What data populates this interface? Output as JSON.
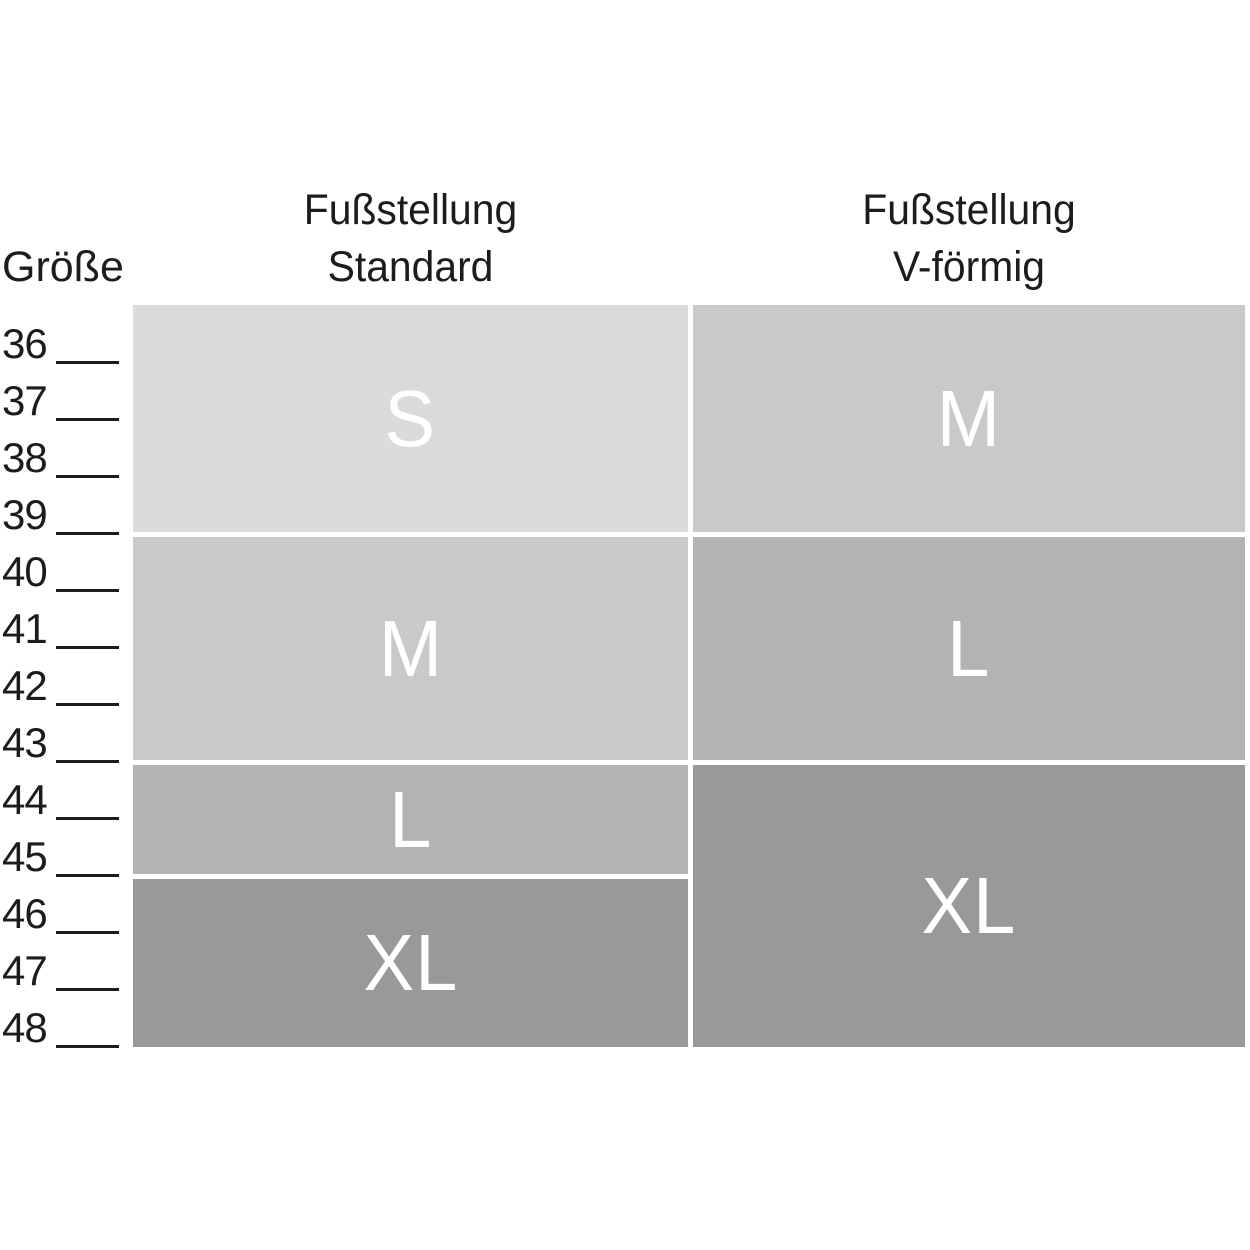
{
  "axis": {
    "title": "Größe"
  },
  "colors": {
    "band_s": "#dbdbdb",
    "band_m": "#c9c9c9",
    "band_l": "#b3b3b3",
    "band_xl": "#999999",
    "band_label_text": "#ffffff",
    "dark_text": "#1c1c1c",
    "background": "#ffffff"
  },
  "chart_data": {
    "type": "table",
    "title": "",
    "row_axis_label": "Größe",
    "sizes": [
      "36",
      "37",
      "38",
      "39",
      "40",
      "41",
      "42",
      "43",
      "44",
      "45",
      "46",
      "47",
      "48"
    ],
    "columns": [
      {
        "header": [
          "Fußstellung",
          "Standard"
        ],
        "bands": [
          {
            "label": "S",
            "size_from": 36,
            "size_to": 39,
            "color": "#dbdbdb"
          },
          {
            "label": "M",
            "size_from": 40,
            "size_to": 43,
            "color": "#c9c9c9"
          },
          {
            "label": "L",
            "size_from": 44,
            "size_to": 45,
            "color": "#b3b3b3"
          },
          {
            "label": "XL",
            "size_from": 46,
            "size_to": 48,
            "color": "#999999"
          }
        ]
      },
      {
        "header": [
          "Fußstellung",
          "V-förmig"
        ],
        "bands": [
          {
            "label": "M",
            "size_from": 36,
            "size_to": 39,
            "color": "#c9c9c9"
          },
          {
            "label": "L",
            "size_from": 40,
            "size_to": 43,
            "color": "#b3b3b3"
          },
          {
            "label": "XL",
            "size_from": 44,
            "size_to": 48,
            "color": "#999999"
          }
        ]
      }
    ],
    "layout": {
      "legend": "none",
      "grid": "off",
      "tick_marks": "short horizontal lines after each size number"
    }
  }
}
